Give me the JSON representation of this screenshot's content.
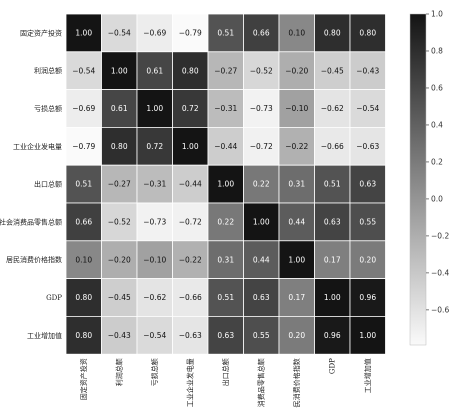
{
  "chart_data": {
    "type": "heatmap",
    "title": "",
    "rows": [
      "固定资产投资",
      "利润总额",
      "亏损总额",
      "工业企业发电量",
      "出口总额",
      "社会消费品零售总额",
      "居民消费价格指数",
      "GDP",
      "工业增加值"
    ],
    "cols": [
      "固定资产投资",
      "利润总额",
      "亏损总额",
      "工业企业发电量",
      "出口总额",
      "消费品零售总额",
      "居民消费价格指数",
      "GDP",
      "工业增加值"
    ],
    "values": [
      [
        1.0,
        -0.54,
        -0.69,
        -0.79,
        0.51,
        0.66,
        0.1,
        0.8,
        0.8
      ],
      [
        -0.54,
        1.0,
        0.61,
        0.8,
        -0.27,
        -0.52,
        -0.2,
        -0.45,
        -0.43
      ],
      [
        -0.69,
        0.61,
        1.0,
        0.72,
        -0.31,
        -0.73,
        -0.1,
        -0.62,
        -0.54
      ],
      [
        -0.79,
        0.8,
        0.72,
        1.0,
        -0.44,
        -0.72,
        -0.22,
        -0.66,
        -0.63
      ],
      [
        0.51,
        -0.27,
        -0.31,
        -0.44,
        1.0,
        0.22,
        0.31,
        0.51,
        0.63
      ],
      [
        0.66,
        -0.52,
        -0.73,
        -0.72,
        0.22,
        1.0,
        0.44,
        0.63,
        0.55
      ],
      [
        0.1,
        -0.2,
        -0.1,
        -0.22,
        0.31,
        0.44,
        1.0,
        0.17,
        0.2
      ],
      [
        0.8,
        -0.45,
        -0.62,
        -0.66,
        0.51,
        0.63,
        0.17,
        1.0,
        0.96
      ],
      [
        0.8,
        -0.43,
        -0.54,
        -0.63,
        0.63,
        0.55,
        0.2,
        0.96,
        1.0
      ]
    ],
    "value_format": "2dp",
    "colormap": "greys",
    "vmin": -0.79,
    "vmax": 1.0,
    "colorbar_ticks": [
      1.0,
      0.8,
      0.6,
      0.4,
      0.2,
      0.0,
      -0.2,
      -0.4,
      -0.6
    ],
    "colorbar_tick_labels": [
      "1.0",
      "0.8",
      "0.6",
      "0.4",
      "0.2",
      "0.0",
      "−0.2",
      "−0.4",
      "−0.6"
    ],
    "grid": true,
    "legend": "colorbar-right"
  },
  "colors": {
    "min_color": "#fafafa",
    "max_color": "#141414",
    "grid_line": "#ffffff",
    "label": "#222222"
  }
}
